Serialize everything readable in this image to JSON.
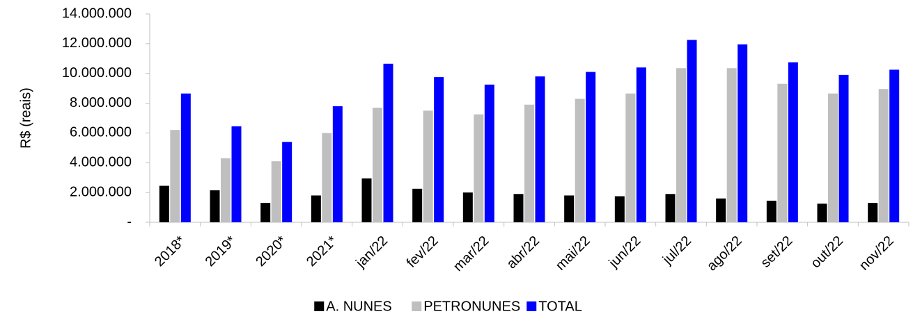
{
  "chart_data": {
    "type": "bar",
    "y_label": "R$ (reais)",
    "categories": [
      "2018*",
      "2019*",
      "2020*",
      "2021*",
      "jan/22",
      "fev/22",
      "mar/22",
      "abr/22",
      "mai/22",
      "jun/22",
      "jul/22",
      "ago/22",
      "set/22",
      "out/22",
      "nov/22"
    ],
    "series": [
      {
        "name": "A. NUNES",
        "color": "#000000",
        "values": [
          2450000,
          2150000,
          1300000,
          1800000,
          2950000,
          2250000,
          2000000,
          1900000,
          1800000,
          1750000,
          1900000,
          1600000,
          1450000,
          1250000,
          1300000
        ]
      },
      {
        "name": "PETRONUNES",
        "color": "#bfbfbf",
        "values": [
          6200000,
          4300000,
          4100000,
          6000000,
          7700000,
          7500000,
          7250000,
          7900000,
          8300000,
          8650000,
          10350000,
          10350000,
          9300000,
          8650000,
          8950000
        ]
      },
      {
        "name": "TOTAL",
        "color": "#0000ff",
        "values": [
          8650000,
          6450000,
          5400000,
          7800000,
          10650000,
          9750000,
          9250000,
          9800000,
          10100000,
          10400000,
          12250000,
          11950000,
          10750000,
          9900000,
          10250000
        ]
      }
    ],
    "ylim": [
      0,
      14000000
    ],
    "yticks": [
      {
        "value": 0,
        "label": "-"
      },
      {
        "value": 2000000,
        "label": "2.000.000"
      },
      {
        "value": 4000000,
        "label": "4.000.000"
      },
      {
        "value": 6000000,
        "label": "6.000.000"
      },
      {
        "value": 8000000,
        "label": "8.000.000"
      },
      {
        "value": 10000000,
        "label": "10.000.000"
      },
      {
        "value": 12000000,
        "label": "12.000.000"
      },
      {
        "value": 14000000,
        "label": "14.000.000"
      }
    ],
    "grid": false,
    "legend": "bottom"
  }
}
